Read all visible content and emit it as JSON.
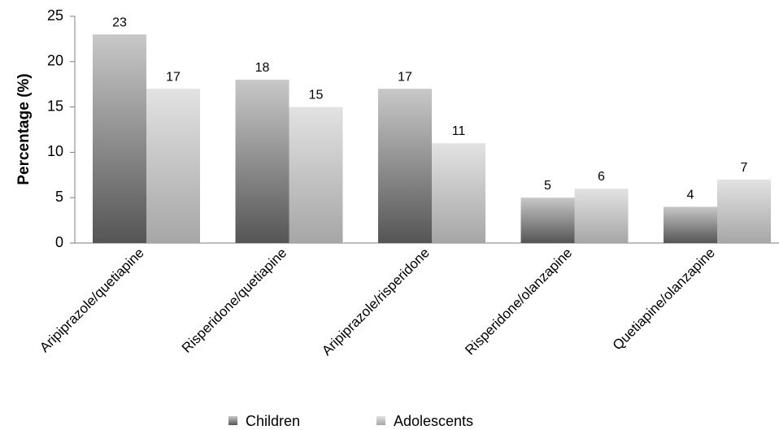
{
  "chart_data": {
    "type": "bar",
    "title": "",
    "xlabel": "",
    "ylabel": "Percentage (%)",
    "ylim": [
      0,
      25
    ],
    "yticks": [
      0,
      5,
      10,
      15,
      20,
      25
    ],
    "categories": [
      "Aripiprazole/quetiapine",
      "Risperidone/quetiapine",
      "Aripiprazole/risperidone",
      "Risperidone/olanzapine",
      "Quetiapine/olanzapine"
    ],
    "series": [
      {
        "name": "Children",
        "values": [
          23,
          18,
          17,
          5,
          4
        ],
        "gradient": [
          "#555555",
          "#c8c8c8"
        ]
      },
      {
        "name": "Adolescents",
        "values": [
          17,
          15,
          11,
          6,
          7
        ],
        "gradient": [
          "#a6a6a6",
          "#e2e2e2"
        ]
      }
    ],
    "grid": false,
    "legend_position": "bottom"
  }
}
